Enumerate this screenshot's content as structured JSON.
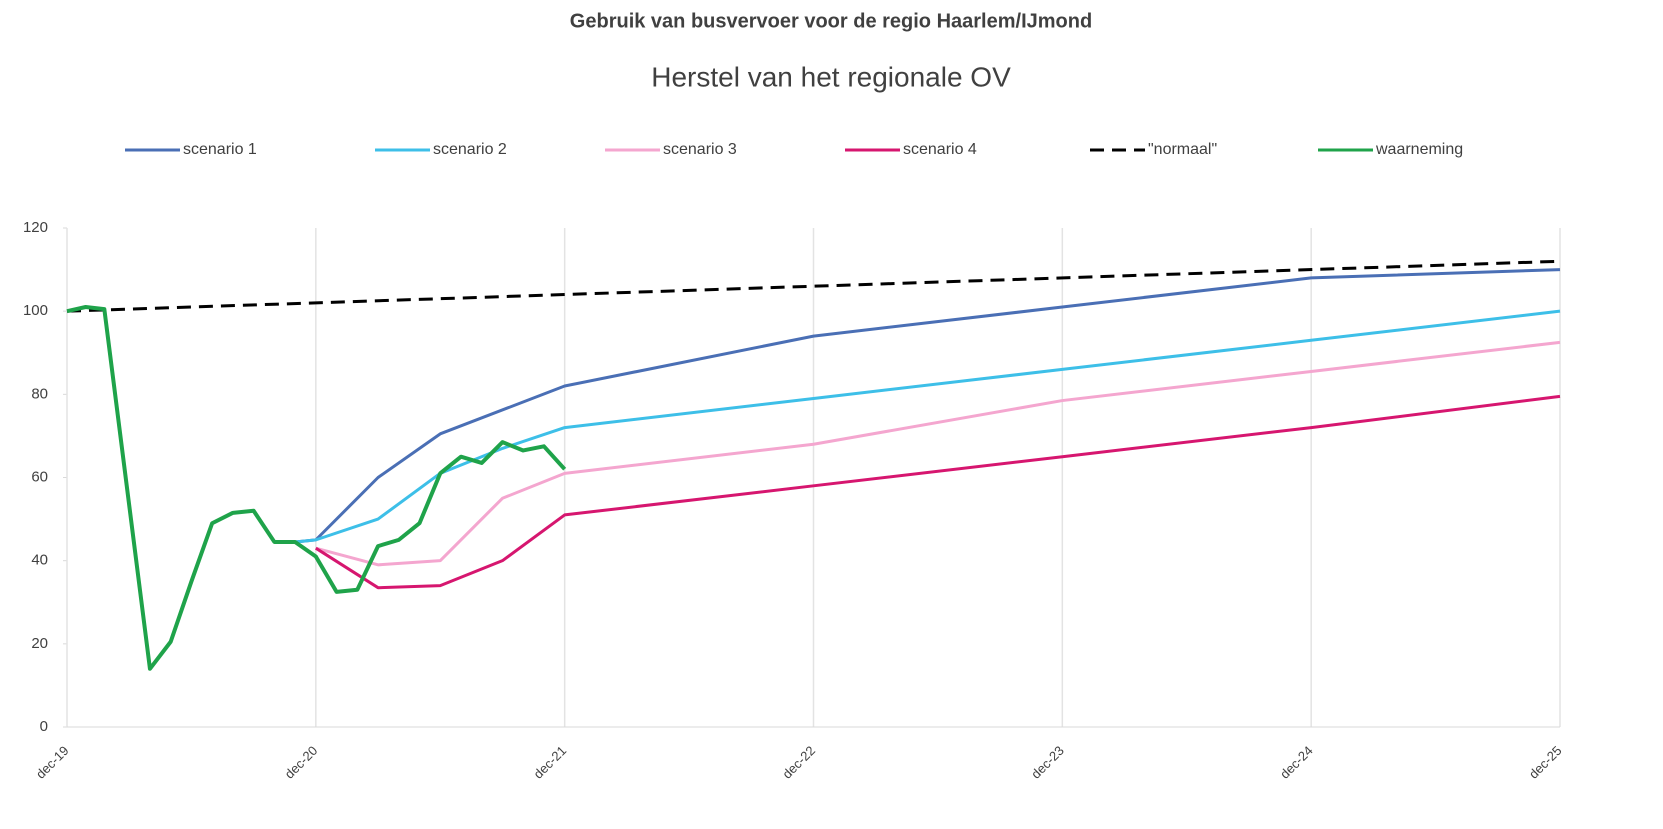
{
  "chart_data": {
    "type": "line",
    "title": "Gebruik van busvervoer voor de regio Haarlem/IJmond",
    "subtitle": "Herstel van het regionale OV",
    "xlim": [
      0,
      72
    ],
    "xticks": [
      {
        "value": 0,
        "label": "dec-19"
      },
      {
        "value": 12,
        "label": "dec-20"
      },
      {
        "value": 24,
        "label": "dec-21"
      },
      {
        "value": 36,
        "label": "dec-22"
      },
      {
        "value": 48,
        "label": "dec-23"
      },
      {
        "value": 60,
        "label": "dec-24"
      },
      {
        "value": 72,
        "label": "dec-25"
      }
    ],
    "ylim": [
      0,
      120
    ],
    "yticks": [
      0,
      20,
      40,
      60,
      80,
      100,
      120
    ],
    "grid": true,
    "legend": "top",
    "series": [
      {
        "name": "scenario 1",
        "color": "#4a6fb5",
        "x": [
          11,
          12,
          15,
          18,
          24,
          36,
          48,
          60,
          72
        ],
        "values": [
          44.5,
          45,
          60,
          70.5,
          82,
          94,
          101,
          108,
          110
        ]
      },
      {
        "name": "scenario 2",
        "color": "#3dbfe8",
        "x": [
          11,
          12,
          15,
          18,
          21,
          24,
          36,
          48,
          60,
          72
        ],
        "values": [
          44.5,
          45,
          50,
          61,
          67,
          72,
          79,
          86,
          93,
          100
        ]
      },
      {
        "name": "scenario 3",
        "color": "#f4a6cf",
        "x": [
          12,
          15,
          18,
          21,
          24,
          36,
          48,
          60,
          72
        ],
        "values": [
          43,
          39,
          40,
          55,
          61,
          68,
          78.5,
          85.5,
          92.5
        ]
      },
      {
        "name": "scenario 4",
        "color": "#d6166f",
        "x": [
          12,
          15,
          18,
          21,
          24,
          36,
          48,
          60,
          72
        ],
        "values": [
          43,
          33.5,
          34,
          40,
          51,
          58,
          65,
          72,
          79.5
        ]
      },
      {
        "name": "\"normaal\"",
        "color": "#000000",
        "dashed": true,
        "x": [
          0,
          72
        ],
        "values": [
          100,
          112
        ]
      },
      {
        "name": "waarneming",
        "color": "#1fa34a",
        "x": [
          0,
          0.9,
          1.8,
          4,
          5,
          6,
          7,
          8,
          9,
          10,
          11,
          12,
          13,
          14,
          15,
          16,
          17,
          18,
          19,
          20,
          21,
          22,
          23,
          24
        ],
        "values": [
          100,
          101,
          100.5,
          14,
          20.5,
          35,
          49,
          51.5,
          52,
          44.5,
          44.5,
          41,
          32.5,
          33,
          43.5,
          45,
          49,
          61,
          65,
          63.5,
          68.5,
          66.5,
          67.5,
          62
        ]
      }
    ]
  }
}
